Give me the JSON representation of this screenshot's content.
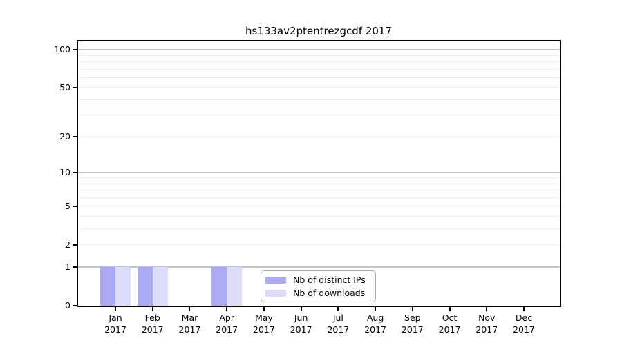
{
  "chart_data": {
    "type": "bar",
    "title": "hs133av2ptentrezgcdf 2017",
    "categories": [
      "Jan",
      "Feb",
      "Mar",
      "Apr",
      "May",
      "Jun",
      "Jul",
      "Aug",
      "Sep",
      "Oct",
      "Nov",
      "Dec"
    ],
    "year_label": "2017",
    "series": [
      {
        "name": "Nb of distinct IPs",
        "color": "#aaaaf5",
        "values": [
          1,
          1,
          0,
          1,
          0,
          0,
          0,
          0,
          0,
          0,
          0,
          0
        ]
      },
      {
        "name": "Nb of downloads",
        "color": "#dcdcf8",
        "values": [
          1,
          1,
          0,
          1,
          0,
          0,
          0,
          0,
          0,
          0,
          0,
          0
        ]
      }
    ],
    "xlabel": "",
    "ylabel": "",
    "yscale": "log1p",
    "ylim": [
      0,
      117
    ],
    "yticks": [
      0,
      1,
      2,
      5,
      10,
      20,
      50,
      100
    ],
    "grid": {
      "major": [
        1,
        10,
        100
      ],
      "minor": [
        2,
        3,
        4,
        5,
        6,
        7,
        8,
        9,
        20,
        30,
        40,
        50,
        60,
        70,
        80,
        90
      ]
    },
    "legend_position": "inside-bottom-center-left",
    "style": {
      "background": "#ffffff",
      "axis_color": "#000000",
      "grid_major_color": "#c3c3c3",
      "grid_minor_color": "#ededed",
      "legend_border_color": "#aaaaaa"
    }
  }
}
